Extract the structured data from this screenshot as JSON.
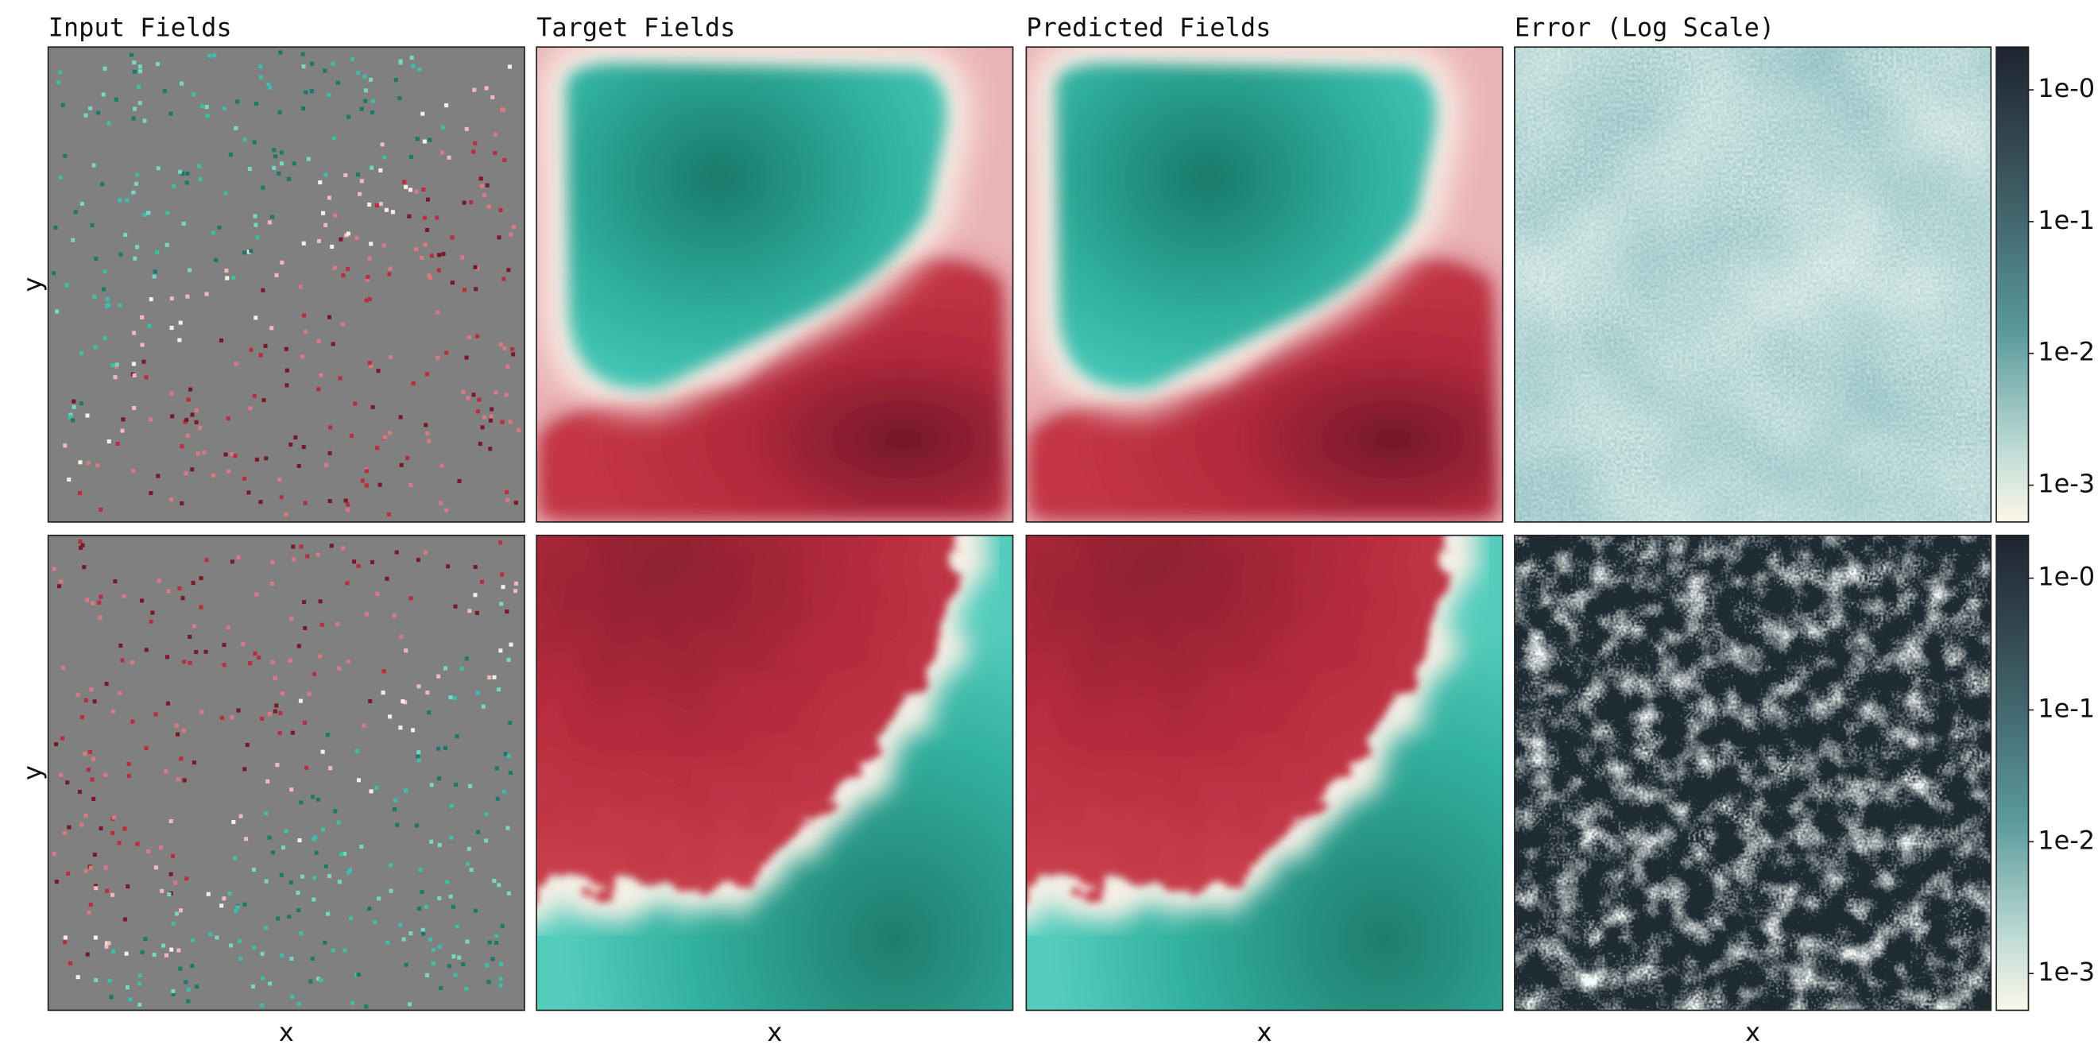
{
  "columns": [
    {
      "title": "Input Fields",
      "x_label": "x"
    },
    {
      "title": "Target Fields",
      "x_label": "x"
    },
    {
      "title": "Predicted Fields",
      "x_label": "x"
    },
    {
      "title": "Error (Log Scale)",
      "x_label": "x"
    }
  ],
  "rows": [
    {
      "y_label": "y",
      "colorbar_ticks": [
        "1e-0",
        "1e-1",
        "1e-2",
        "1e-3"
      ]
    },
    {
      "y_label": "y",
      "colorbar_ticks": [
        "1e-0",
        "1e-1",
        "1e-2",
        "1e-3"
      ]
    }
  ]
}
